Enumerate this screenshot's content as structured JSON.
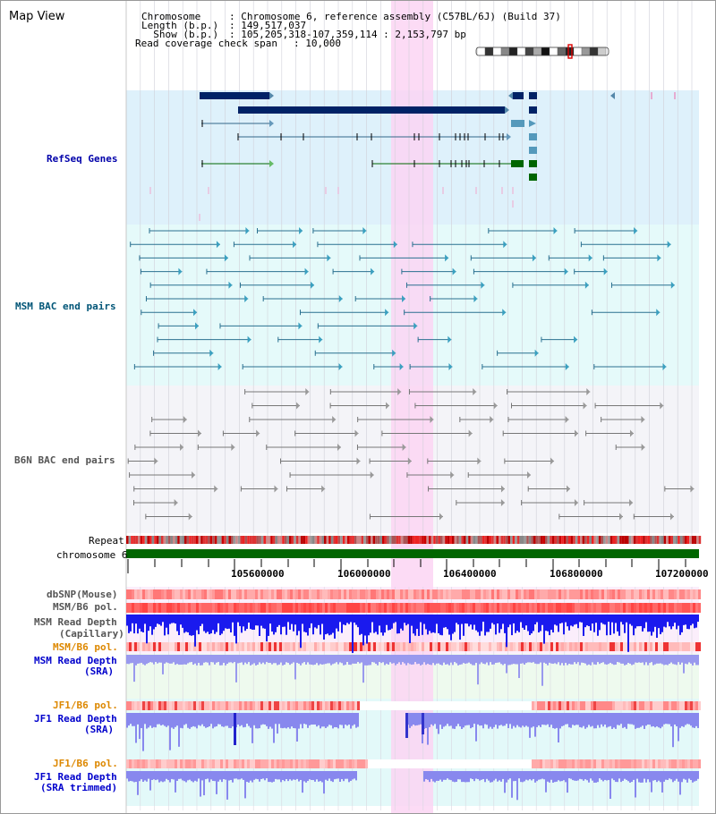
{
  "view_title": "Map View",
  "header": {
    "chromosome_key": "Chromosome   ",
    "chromosome_val": ": Chromosome 6, reference assembly (C57BL/6J) (Build 37)",
    "length_key": "Length (b.p.)",
    "length_val": ": 149,517,037",
    "show_key": "  Show (b.p.)",
    "show_val": ": 105,205,318-107,359,114 : 2,153,797 bp",
    "coverage_key": "Read coverage check span",
    "coverage_val": ": 10,000"
  },
  "tracks": {
    "refseq": "RefSeq Genes",
    "msm_bac": "MSM BAC end pairs",
    "b6n_bac": "B6N BAC end pairs",
    "repeat": "Repeat",
    "chromosome": "chromosome 6",
    "dbsnp": "dbSNP(Mouse)",
    "msm_b6_pol_1": "MSM/B6 pol.",
    "msm_read_depth_cap_1": "MSM Read Depth",
    "msm_read_depth_cap_2": "(Capillary)",
    "msm_b6_pol_2": "MSM/B6 pol.",
    "msm_read_depth_sra_1": "MSM Read Depth",
    "msm_read_depth_sra_2": "(SRA)",
    "jf1_b6_pol_1": "JF1/B6 pol.",
    "jf1_read_depth_1": "JF1 Read Depth",
    "jf1_read_depth_2": "(SRA)",
    "jf1_b6_pol_2": "JF1/B6 pol.",
    "jf1_read_depth_trim_1": "JF1 Read Depth",
    "jf1_read_depth_trim_2": "(SRA trimmed)"
  },
  "axis_ticks": [
    "105600000",
    "106000000",
    "106400000",
    "106800000",
    "107200000"
  ],
  "colors": {
    "refseq_label": "#0000aa",
    "msm_label": "#005577",
    "b6n_label": "#555555",
    "orange_label": "#dd8800",
    "blue_label": "#0000cc",
    "refseq_bg": "#def1fb",
    "msm_bg": "#e5fafa",
    "b6n_bg": "#f4f4f8",
    "highlight": "#fbd5f3",
    "gene_dark": "#002266",
    "gene_green": "#006600",
    "chromosome_bar": "#006600"
  }
}
